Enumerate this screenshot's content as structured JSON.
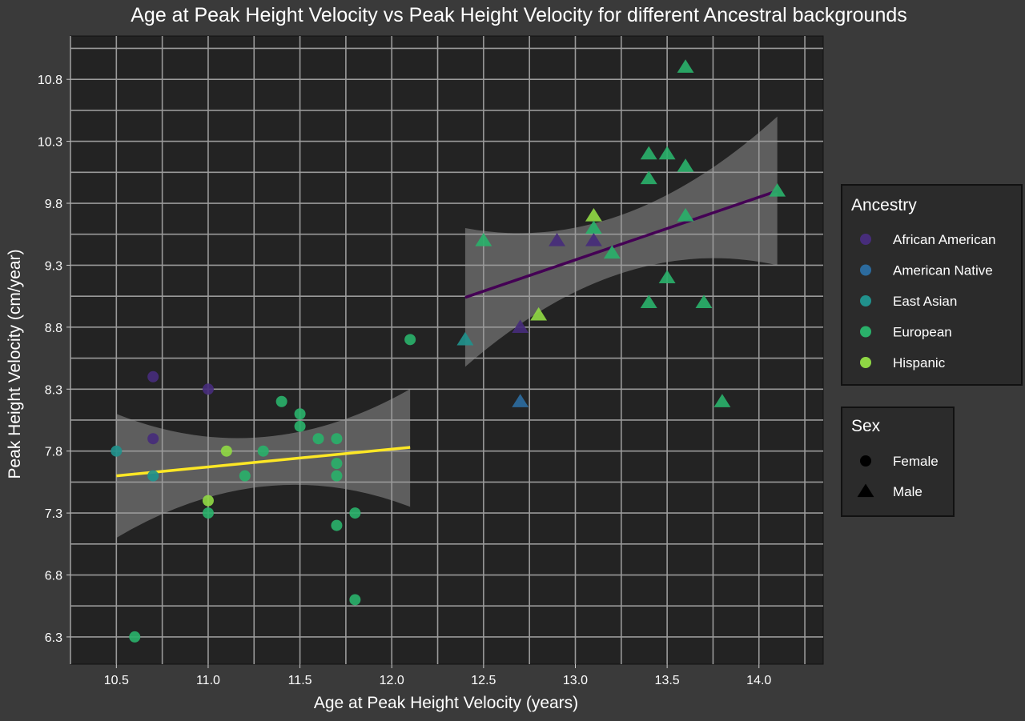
{
  "chart_data": {
    "type": "scatter",
    "title": "Age at Peak Height Velocity vs Peak Height Velocity for different Ancestral backgrounds",
    "xlabel": "Age at Peak Height Velocity (years)",
    "ylabel": "Peak Height Velocity (cm/year)",
    "xlim": [
      10.25,
      14.35
    ],
    "ylim": [
      6.08,
      11.15
    ],
    "x_ticks": [
      "10.5",
      "11.0",
      "11.5",
      "12.0",
      "12.5",
      "13.0",
      "13.5",
      "14.0"
    ],
    "y_ticks": [
      "6.3",
      "6.8",
      "7.3",
      "7.8",
      "8.3",
      "8.8",
      "9.3",
      "9.8",
      "10.3",
      "10.8"
    ],
    "grid": true,
    "legend_placement": "right",
    "legends": {
      "ancestry": {
        "title": "Ancestry",
        "items": [
          {
            "label": "African American",
            "color": "#472d7b"
          },
          {
            "label": "American Native",
            "color": "#2c6b9e"
          },
          {
            "label": "East Asian",
            "color": "#21918c"
          },
          {
            "label": "European",
            "color": "#2ab06a"
          },
          {
            "label": "Hispanic",
            "color": "#8fd744"
          }
        ]
      },
      "sex": {
        "title": "Sex",
        "items": [
          {
            "label": "Female",
            "shape": "circle"
          },
          {
            "label": "Male",
            "shape": "triangle"
          }
        ]
      }
    },
    "fits": [
      {
        "sex": "Female",
        "color": "#fde725",
        "x": [
          10.5,
          12.1
        ],
        "y": [
          7.6,
          7.83
        ],
        "ci_lower": [
          7.1,
          7.35
        ],
        "ci_upper": [
          8.1,
          8.3
        ]
      },
      {
        "sex": "Male",
        "color": "#440154",
        "x": [
          12.4,
          14.1
        ],
        "y": [
          9.04,
          9.9
        ],
        "ci_lower": [
          8.48,
          9.3
        ],
        "ci_upper": [
          9.6,
          10.5
        ]
      }
    ],
    "points": [
      {
        "x": 10.5,
        "y": 7.8,
        "sex": "Female",
        "ancestry": "East Asian"
      },
      {
        "x": 10.6,
        "y": 6.3,
        "sex": "Female",
        "ancestry": "European"
      },
      {
        "x": 10.7,
        "y": 8.4,
        "sex": "Female",
        "ancestry": "African American"
      },
      {
        "x": 10.7,
        "y": 7.9,
        "sex": "Female",
        "ancestry": "African American"
      },
      {
        "x": 10.7,
        "y": 7.6,
        "sex": "Female",
        "ancestry": "East Asian"
      },
      {
        "x": 11.0,
        "y": 8.3,
        "sex": "Female",
        "ancestry": "African American"
      },
      {
        "x": 11.0,
        "y": 7.4,
        "sex": "Female",
        "ancestry": "Hispanic"
      },
      {
        "x": 11.0,
        "y": 7.3,
        "sex": "Female",
        "ancestry": "European"
      },
      {
        "x": 11.1,
        "y": 7.8,
        "sex": "Female",
        "ancestry": "Hispanic"
      },
      {
        "x": 11.2,
        "y": 7.6,
        "sex": "Female",
        "ancestry": "European"
      },
      {
        "x": 11.3,
        "y": 7.8,
        "sex": "Female",
        "ancestry": "European"
      },
      {
        "x": 11.4,
        "y": 8.2,
        "sex": "Female",
        "ancestry": "European"
      },
      {
        "x": 11.5,
        "y": 8.1,
        "sex": "Female",
        "ancestry": "European"
      },
      {
        "x": 11.5,
        "y": 8.0,
        "sex": "Female",
        "ancestry": "European"
      },
      {
        "x": 11.6,
        "y": 7.9,
        "sex": "Female",
        "ancestry": "European"
      },
      {
        "x": 11.7,
        "y": 7.9,
        "sex": "Female",
        "ancestry": "European"
      },
      {
        "x": 11.7,
        "y": 7.7,
        "sex": "Female",
        "ancestry": "European"
      },
      {
        "x": 11.7,
        "y": 7.6,
        "sex": "Female",
        "ancestry": "European"
      },
      {
        "x": 11.7,
        "y": 7.2,
        "sex": "Female",
        "ancestry": "European"
      },
      {
        "x": 11.8,
        "y": 7.3,
        "sex": "Female",
        "ancestry": "European"
      },
      {
        "x": 11.8,
        "y": 6.6,
        "sex": "Female",
        "ancestry": "European"
      },
      {
        "x": 12.1,
        "y": 8.7,
        "sex": "Female",
        "ancestry": "European"
      },
      {
        "x": 12.4,
        "y": 8.7,
        "sex": "Male",
        "ancestry": "East Asian"
      },
      {
        "x": 12.5,
        "y": 9.5,
        "sex": "Male",
        "ancestry": "European"
      },
      {
        "x": 12.7,
        "y": 8.8,
        "sex": "Male",
        "ancestry": "African American"
      },
      {
        "x": 12.7,
        "y": 8.2,
        "sex": "Male",
        "ancestry": "American Native"
      },
      {
        "x": 12.8,
        "y": 8.9,
        "sex": "Male",
        "ancestry": "Hispanic"
      },
      {
        "x": 12.9,
        "y": 9.5,
        "sex": "Male",
        "ancestry": "African American"
      },
      {
        "x": 13.1,
        "y": 9.7,
        "sex": "Male",
        "ancestry": "Hispanic"
      },
      {
        "x": 13.1,
        "y": 9.6,
        "sex": "Male",
        "ancestry": "European"
      },
      {
        "x": 13.1,
        "y": 9.5,
        "sex": "Male",
        "ancestry": "African American"
      },
      {
        "x": 13.2,
        "y": 9.4,
        "sex": "Male",
        "ancestry": "European"
      },
      {
        "x": 13.4,
        "y": 10.2,
        "sex": "Male",
        "ancestry": "European"
      },
      {
        "x": 13.4,
        "y": 10.0,
        "sex": "Male",
        "ancestry": "European"
      },
      {
        "x": 13.4,
        "y": 9.0,
        "sex": "Male",
        "ancestry": "European"
      },
      {
        "x": 13.5,
        "y": 10.2,
        "sex": "Male",
        "ancestry": "European"
      },
      {
        "x": 13.5,
        "y": 9.2,
        "sex": "Male",
        "ancestry": "European"
      },
      {
        "x": 13.6,
        "y": 10.9,
        "sex": "Male",
        "ancestry": "European"
      },
      {
        "x": 13.6,
        "y": 10.1,
        "sex": "Male",
        "ancestry": "European"
      },
      {
        "x": 13.6,
        "y": 9.7,
        "sex": "Male",
        "ancestry": "European"
      },
      {
        "x": 13.7,
        "y": 9.0,
        "sex": "Male",
        "ancestry": "European"
      },
      {
        "x": 13.8,
        "y": 8.2,
        "sex": "Male",
        "ancestry": "European"
      },
      {
        "x": 14.1,
        "y": 9.9,
        "sex": "Male",
        "ancestry": "European"
      }
    ]
  }
}
